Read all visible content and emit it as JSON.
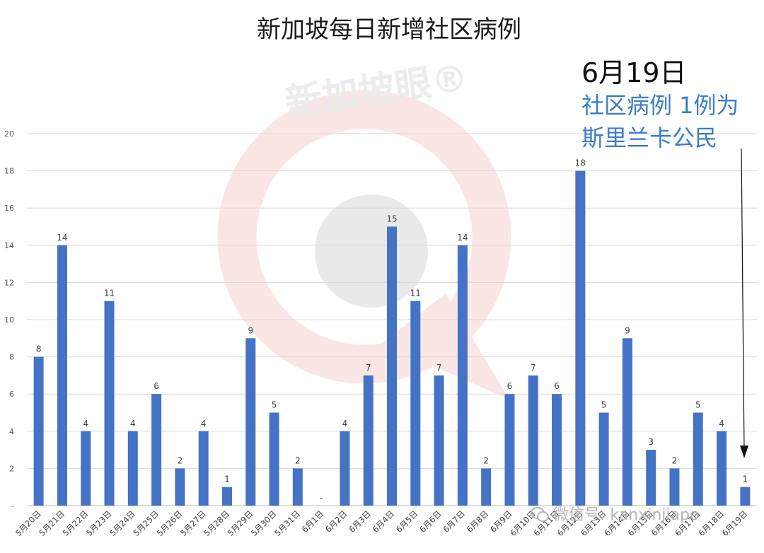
{
  "chart_data": {
    "type": "bar",
    "title": "新加坡每日新增社区病例",
    "xlabel": "",
    "ylabel": "",
    "ylim": [
      0,
      20
    ],
    "y_ticks": [
      "-",
      "2",
      "4",
      "6",
      "8",
      "10",
      "12",
      "14",
      "16",
      "18",
      "20"
    ],
    "grid": true,
    "bar_color": "#4472c4",
    "categories": [
      "5月20日",
      "5月21日",
      "5月22日",
      "5月23日",
      "5月24日",
      "5月25日",
      "5月26日",
      "5月27日",
      "5月28日",
      "5月29日",
      "5月30日",
      "5月31日",
      "6月1日",
      "6月2日",
      "6月3日",
      "6月4日",
      "6月5日",
      "6月6日",
      "6月7日",
      "6月8日",
      "6月9日",
      "6月10日",
      "6月11日",
      "6月12日",
      "6月13日",
      "6月14日",
      "6月15日",
      "6月16日",
      "6月17日",
      "6月18日",
      "6月19日"
    ],
    "values": [
      8,
      14,
      4,
      11,
      4,
      6,
      2,
      4,
      1,
      9,
      5,
      2,
      0,
      4,
      7,
      15,
      11,
      7,
      14,
      2,
      6,
      7,
      6,
      18,
      5,
      9,
      3,
      2,
      5,
      4,
      1
    ],
    "value_labels": [
      "8",
      "14",
      "4",
      "11",
      "4",
      "6",
      "2",
      "4",
      "1",
      "9",
      "5",
      "2",
      "-",
      "4",
      "7",
      "15",
      "11",
      "7",
      "14",
      "2",
      "6",
      "7",
      "6",
      "18",
      "5",
      "9",
      "3",
      "2",
      "5",
      "4",
      "1"
    ]
  },
  "annotation": {
    "date": "6月19日",
    "line1": "社区病例 1例为",
    "line2": "斯里兰卡公民",
    "date_color": "#111111",
    "text_color": "#3b7ec8"
  },
  "watermark": {
    "text": "新加坡眼®",
    "color": "#f3c9c9"
  },
  "footer_watermark": {
    "text": "微信号: kanxinjiapo",
    "icon": "wechat-icon"
  }
}
